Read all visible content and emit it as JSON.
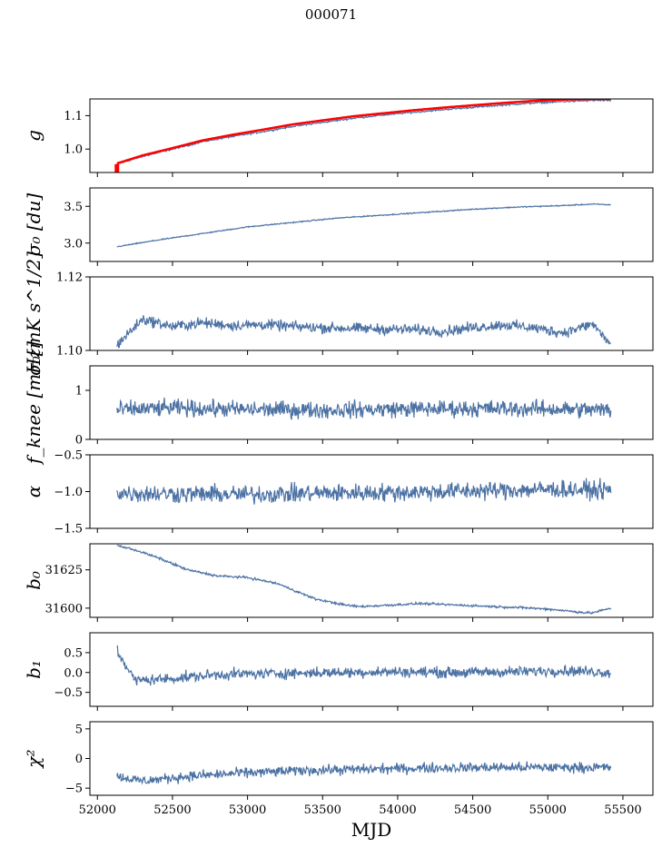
{
  "figure": {
    "title": "000071",
    "xlabel": "MJD",
    "line_color": "#4c72a4",
    "model_color": "#ff0000",
    "text_color": "#000000"
  },
  "chart_data": [
    {
      "id": "g",
      "type": "line",
      "ylabel": "g",
      "ylim": [
        0.93,
        1.15
      ],
      "yticks": [
        1.0,
        1.1
      ],
      "ytick_labels": [
        "1.0",
        "1.1"
      ],
      "series": [
        {
          "name": "g",
          "x": [
            52130,
            52300,
            52500,
            52700,
            52900,
            53100,
            53300,
            53500,
            53700,
            53900,
            54100,
            54300,
            54500,
            54700,
            54900,
            55100,
            55300,
            55420
          ],
          "y": [
            0.955,
            0.978,
            1.0,
            1.022,
            1.038,
            1.052,
            1.068,
            1.08,
            1.092,
            1.102,
            1.11,
            1.118,
            1.125,
            1.132,
            1.138,
            1.142,
            1.146,
            1.145
          ]
        },
        {
          "name": "model",
          "x": [
            52130,
            52300,
            52500,
            52700,
            52900,
            53100,
            53300,
            53500,
            53700,
            53900,
            54100,
            54300,
            54500,
            54700,
            54900,
            55100,
            55300,
            55420
          ],
          "y": [
            0.957,
            0.981,
            1.003,
            1.026,
            1.043,
            1.058,
            1.074,
            1.086,
            1.098,
            1.107,
            1.116,
            1.124,
            1.131,
            1.138,
            1.144,
            1.148,
            1.15,
            1.15
          ]
        }
      ]
    },
    {
      "id": "sigma0_du",
      "type": "line",
      "ylabel": "σ₀ [du]",
      "ylim": [
        2.75,
        3.75
      ],
      "yticks": [
        3.0,
        3.5
      ],
      "ytick_labels": [
        "3.0",
        "3.5"
      ],
      "series": [
        {
          "name": "sigma0",
          "x": [
            52130,
            52400,
            52700,
            53000,
            53300,
            53600,
            53900,
            54200,
            54500,
            54800,
            55100,
            55300,
            55420
          ],
          "y": [
            2.95,
            3.04,
            3.13,
            3.22,
            3.28,
            3.34,
            3.38,
            3.42,
            3.46,
            3.49,
            3.51,
            3.53,
            3.52
          ]
        }
      ]
    },
    {
      "id": "sigma0_mk",
      "type": "line",
      "ylabel": "σ₀[mK s^1/2]",
      "ylim": [
        1.1,
        1.12
      ],
      "yticks": [
        1.1,
        1.12
      ],
      "ytick_labels": [
        "1.10",
        "1.12"
      ],
      "series": [
        {
          "name": "sigma0_mK",
          "x": [
            52130,
            52300,
            52500,
            52700,
            52900,
            53100,
            53300,
            53500,
            53700,
            53900,
            54100,
            54300,
            54500,
            54700,
            54900,
            55100,
            55300,
            55420
          ],
          "y": [
            1.1015,
            1.1085,
            1.1065,
            1.1075,
            1.1068,
            1.107,
            1.1065,
            1.1062,
            1.106,
            1.1058,
            1.1057,
            1.1052,
            1.1062,
            1.107,
            1.1062,
            1.1048,
            1.1072,
            1.1015
          ]
        }
      ]
    },
    {
      "id": "fknee",
      "type": "line",
      "ylabel": "f_knee [mHz]",
      "ylim": [
        0,
        1.5
      ],
      "yticks": [
        0,
        1
      ],
      "ytick_labels": [
        "0",
        "1"
      ],
      "series": [
        {
          "name": "fknee",
          "x": [
            52130,
            52500,
            53000,
            53500,
            54000,
            54500,
            55000,
            55420
          ],
          "y": [
            0.6,
            0.64,
            0.61,
            0.6,
            0.62,
            0.63,
            0.62,
            0.6
          ]
        }
      ]
    },
    {
      "id": "alpha",
      "type": "line",
      "ylabel": "α",
      "ylim": [
        -1.5,
        -0.5
      ],
      "yticks": [
        -1.5,
        -1.0,
        -0.5
      ],
      "ytick_labels": [
        "−1.5",
        "−1.0",
        "−0.5"
      ],
      "series": [
        {
          "name": "alpha",
          "x": [
            52130,
            52500,
            53000,
            53500,
            54000,
            54500,
            55000,
            55420
          ],
          "y": [
            -1.02,
            -1.03,
            -1.04,
            -1.02,
            -1.01,
            -0.99,
            -0.97,
            -0.98
          ]
        }
      ]
    },
    {
      "id": "b0",
      "type": "line",
      "ylabel": "b₀",
      "ylim": [
        31594,
        31642
      ],
      "yticks": [
        31600,
        31625
      ],
      "ytick_labels": [
        "31600",
        "31625"
      ],
      "series": [
        {
          "name": "b0",
          "x": [
            52130,
            52250,
            52400,
            52600,
            52800,
            53000,
            53200,
            53450,
            53650,
            53750,
            53950,
            54150,
            54400,
            54650,
            54900,
            55050,
            55250,
            55300,
            55420
          ],
          "y": [
            31641,
            31638,
            31633,
            31625,
            31621,
            31620,
            31616,
            31606,
            31602,
            31601,
            31602,
            31603,
            31602,
            31601,
            31600,
            31599,
            31597,
            31597,
            31600
          ]
        }
      ]
    },
    {
      "id": "b1",
      "type": "line",
      "ylabel": "b₁",
      "ylim": [
        -0.85,
        1.0
      ],
      "yticks": [
        -0.5,
        0.0,
        0.5
      ],
      "ytick_labels": [
        "−0.5",
        "0.0",
        "0.5"
      ],
      "series": [
        {
          "name": "b1",
          "x": [
            52130,
            52250,
            52500,
            52800,
            53200,
            53600,
            54000,
            54400,
            54800,
            55100,
            55420
          ],
          "y": [
            0.55,
            -0.2,
            -0.15,
            -0.05,
            -0.02,
            0.0,
            0.02,
            0.0,
            0.02,
            0.05,
            0.0
          ]
        }
      ]
    },
    {
      "id": "chi2",
      "type": "line",
      "ylabel": "χ²",
      "ylim": [
        -6.2,
        6.2
      ],
      "yticks": [
        -5,
        0,
        5
      ],
      "ytick_labels": [
        "−5",
        "0",
        "5"
      ],
      "series": [
        {
          "name": "chi2",
          "x": [
            52130,
            52300,
            52600,
            53000,
            53400,
            53800,
            54200,
            54600,
            55000,
            55420
          ],
          "y": [
            -3.0,
            -3.8,
            -3.0,
            -2.4,
            -2.0,
            -1.8,
            -1.6,
            -1.5,
            -1.5,
            -1.5
          ]
        }
      ]
    }
  ],
  "xaxis": {
    "xlim": [
      51950,
      55700
    ],
    "xticks": [
      52000,
      52500,
      53000,
      53500,
      54000,
      54500,
      55000,
      55500
    ],
    "xtick_labels": [
      "52000",
      "52500",
      "53000",
      "53500",
      "54000",
      "54500",
      "55000",
      "55500"
    ]
  }
}
